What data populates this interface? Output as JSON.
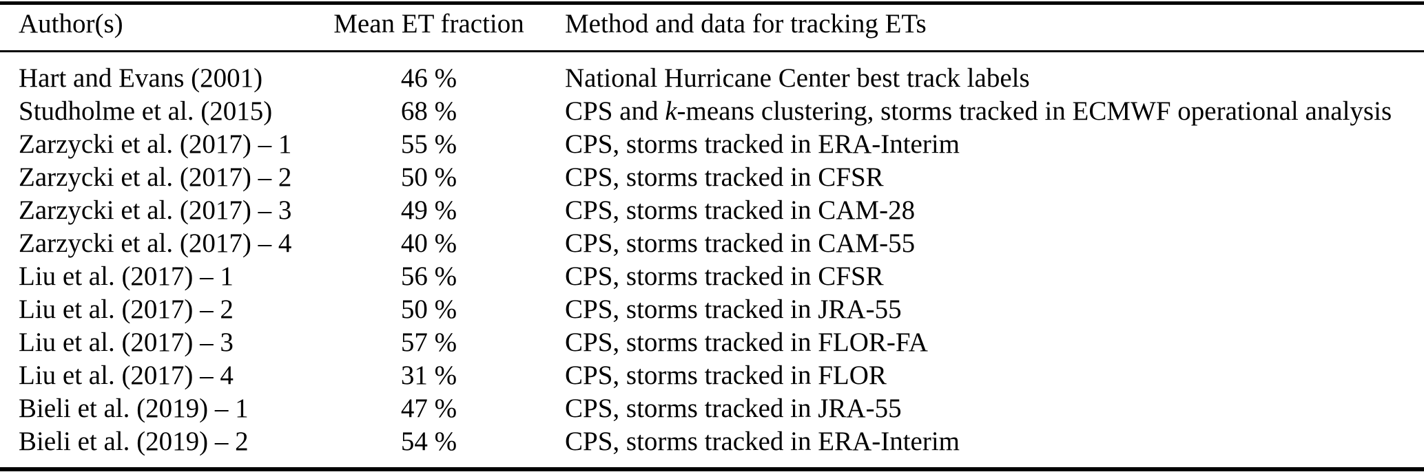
{
  "table": {
    "rule_color": "#000000",
    "text_color": "#000000",
    "columns": {
      "author": "Author(s)",
      "fraction": "Mean ET fraction",
      "method": "Method and data for tracking ETs"
    },
    "rows": [
      {
        "author": "Hart and Evans (2001)",
        "fraction": "46 %",
        "method": "National Hurricane Center best track labels"
      },
      {
        "author": "Studholme et al. (2015)",
        "fraction": "68 %",
        "method": "CPS and k-means clustering, storms tracked in ECMWF operational analysis"
      },
      {
        "author": "Zarzycki et al. (2017) – 1",
        "fraction": "55 %",
        "method": "CPS, storms tracked in ERA-Interim"
      },
      {
        "author": "Zarzycki et al. (2017) – 2",
        "fraction": "50 %",
        "method": "CPS, storms tracked in CFSR"
      },
      {
        "author": "Zarzycki et al. (2017) – 3",
        "fraction": "49 %",
        "method": "CPS, storms tracked in CAM-28"
      },
      {
        "author": "Zarzycki et al. (2017) – 4",
        "fraction": "40 %",
        "method": "CPS, storms tracked in CAM-55"
      },
      {
        "author": "Liu et al. (2017) – 1",
        "fraction": "56 %",
        "method": "CPS, storms tracked in CFSR"
      },
      {
        "author": "Liu et al. (2017) – 2",
        "fraction": "50 %",
        "method": "CPS, storms tracked in JRA-55"
      },
      {
        "author": "Liu et al. (2017) – 3",
        "fraction": "57 %",
        "method": "CPS, storms tracked in FLOR-FA"
      },
      {
        "author": "Liu et al. (2017) – 4",
        "fraction": "31 %",
        "method": "CPS, storms tracked in FLOR"
      },
      {
        "author": "Bieli et al. (2019) – 1",
        "fraction": "47 %",
        "method": "CPS, storms tracked in JRA-55"
      },
      {
        "author": "Bieli et al. (2019) – 2",
        "fraction": "54 %",
        "method": "CPS, storms tracked in ERA-Interim"
      }
    ]
  }
}
